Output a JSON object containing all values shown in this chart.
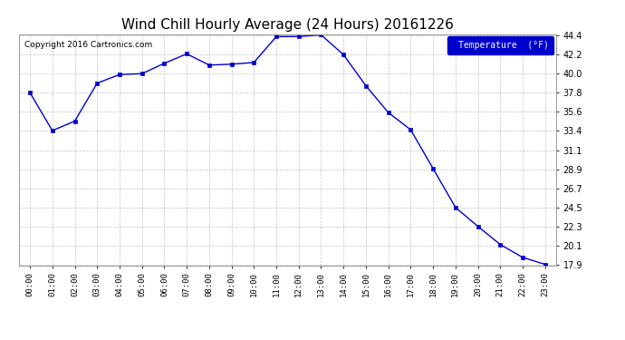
{
  "title": "Wind Chill Hourly Average (24 Hours) 20161226",
  "copyright": "Copyright 2016 Cartronics.com",
  "legend_label": "Temperature  (°F)",
  "hours": [
    "00:00",
    "01:00",
    "02:00",
    "03:00",
    "04:00",
    "05:00",
    "06:00",
    "07:00",
    "08:00",
    "09:00",
    "10:00",
    "11:00",
    "12:00",
    "13:00",
    "14:00",
    "15:00",
    "16:00",
    "17:00",
    "18:00",
    "19:00",
    "20:00",
    "21:00",
    "22:00",
    "23:00"
  ],
  "values": [
    37.8,
    33.4,
    34.5,
    38.9,
    39.9,
    40.0,
    41.2,
    42.3,
    41.0,
    41.1,
    41.3,
    44.3,
    44.3,
    44.5,
    42.2,
    38.6,
    35.5,
    33.5,
    29.0,
    24.5,
    22.3,
    20.2,
    18.7,
    17.9
  ],
  "ylim_min": 17.8,
  "ylim_max": 44.6,
  "yticks": [
    17.9,
    20.1,
    22.3,
    24.5,
    26.7,
    28.9,
    31.1,
    33.4,
    35.6,
    37.8,
    40.0,
    42.2,
    44.4
  ],
  "line_color": "#0000cc",
  "marker_color": "#0000cc",
  "bg_color": "#ffffff",
  "plot_bg_color": "#ffffff",
  "grid_color": "#aaaaaa",
  "title_fontsize": 11,
  "copyright_fontsize": 6.5,
  "legend_bg_color": "#0000cc",
  "legend_text_color": "#ffffff",
  "fig_width": 6.9,
  "fig_height": 3.75,
  "dpi": 100
}
